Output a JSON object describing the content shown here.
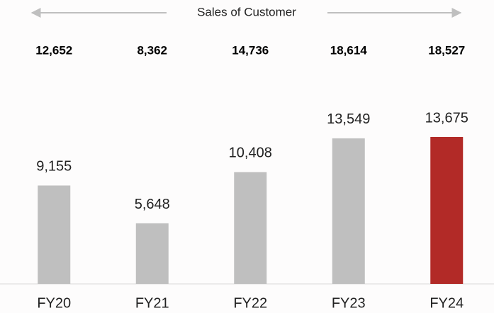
{
  "chart_data": {
    "type": "bar",
    "header": "Sales of Customer",
    "customer_sales": {
      "values": [
        12652,
        8362,
        14736,
        18614,
        18527
      ],
      "value_labels": [
        "12,652",
        "8,362",
        "14,736",
        "18,614",
        "18,527"
      ]
    },
    "categories": [
      "FY20",
      "FY21",
      "FY22",
      "FY23",
      "FY24"
    ],
    "values": [
      9155,
      5648,
      10408,
      13549,
      13675
    ],
    "value_labels": [
      "9,155",
      "5,648",
      "10,408",
      "13,549",
      "13,675"
    ],
    "colors": [
      "#bfbfbf",
      "#bfbfbf",
      "#bfbfbf",
      "#bfbfbf",
      "#b22a27"
    ]
  }
}
